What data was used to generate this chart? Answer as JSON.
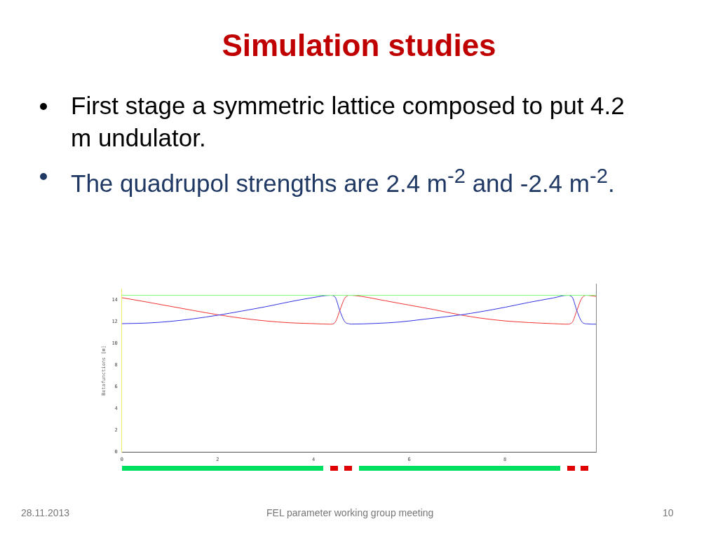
{
  "chart_data": {
    "type": "line",
    "title": "Simulation studies",
    "ylabel": "Betafunctions [m]",
    "xlim": [
      0,
      9.9
    ],
    "ylim": [
      0,
      15
    ],
    "xticks": [
      0,
      2,
      4,
      6,
      8
    ],
    "yticks": [
      0,
      2,
      4,
      6,
      8,
      10,
      12,
      14
    ],
    "grid": false,
    "legend": false,
    "marker": "none",
    "line_style": "solid",
    "ref_lines": [
      {
        "axis": "y",
        "value": 14.4,
        "color": "#80ff80"
      }
    ],
    "series": [
      {
        "color": "#3030e0",
        "x": [
          0,
          0.5,
          1,
          1.5,
          2,
          2.5,
          3,
          3.5,
          4,
          4.36,
          4.45,
          4.55,
          4.65,
          4.75,
          4.8,
          5.3,
          5.8,
          6.3,
          6.8,
          7.07,
          7.5,
          8,
          8.5,
          9,
          9.3,
          9.4,
          9.5,
          9.6,
          9.7,
          9.9
        ],
        "values": [
          11.8,
          11.85,
          12,
          12.25,
          12.57,
          12.95,
          13.35,
          13.8,
          14.2,
          14.4,
          14.25,
          13,
          12,
          11.78,
          11.76,
          11.82,
          11.95,
          12.2,
          12.45,
          12.6,
          12.9,
          13.3,
          13.75,
          14.15,
          14.4,
          14.25,
          13,
          12,
          11.78,
          11.75
        ]
      },
      {
        "color": "#f03030",
        "x": [
          0,
          0.5,
          1,
          1.5,
          2,
          2.5,
          3,
          3.5,
          4,
          4.36,
          4.45,
          4.55,
          4.65,
          4.75,
          5,
          5.5,
          6,
          6.5,
          7.07,
          7.5,
          8,
          8.5,
          9,
          9.3,
          9.4,
          9.5,
          9.6,
          9.7,
          9.9
        ],
        "values": [
          14.18,
          13.8,
          13.4,
          13,
          12.62,
          12.3,
          12.05,
          11.88,
          11.8,
          11.75,
          11.9,
          13,
          14.1,
          14.4,
          14.3,
          13.9,
          13.5,
          13.1,
          12.6,
          12.3,
          12.05,
          11.9,
          11.8,
          11.75,
          11.9,
          13,
          14.1,
          14.4,
          14.3
        ]
      }
    ],
    "annotations": [
      "First stage a symmetric lattice composed to put 4.2 m undulator.",
      "The quadrupol strengths are 2.4 m$^{-2}$ and -2.4 m$^{-2}$.",
      "28.11.2013",
      "FEL parameter working group meeting",
      "10"
    ]
  }
}
